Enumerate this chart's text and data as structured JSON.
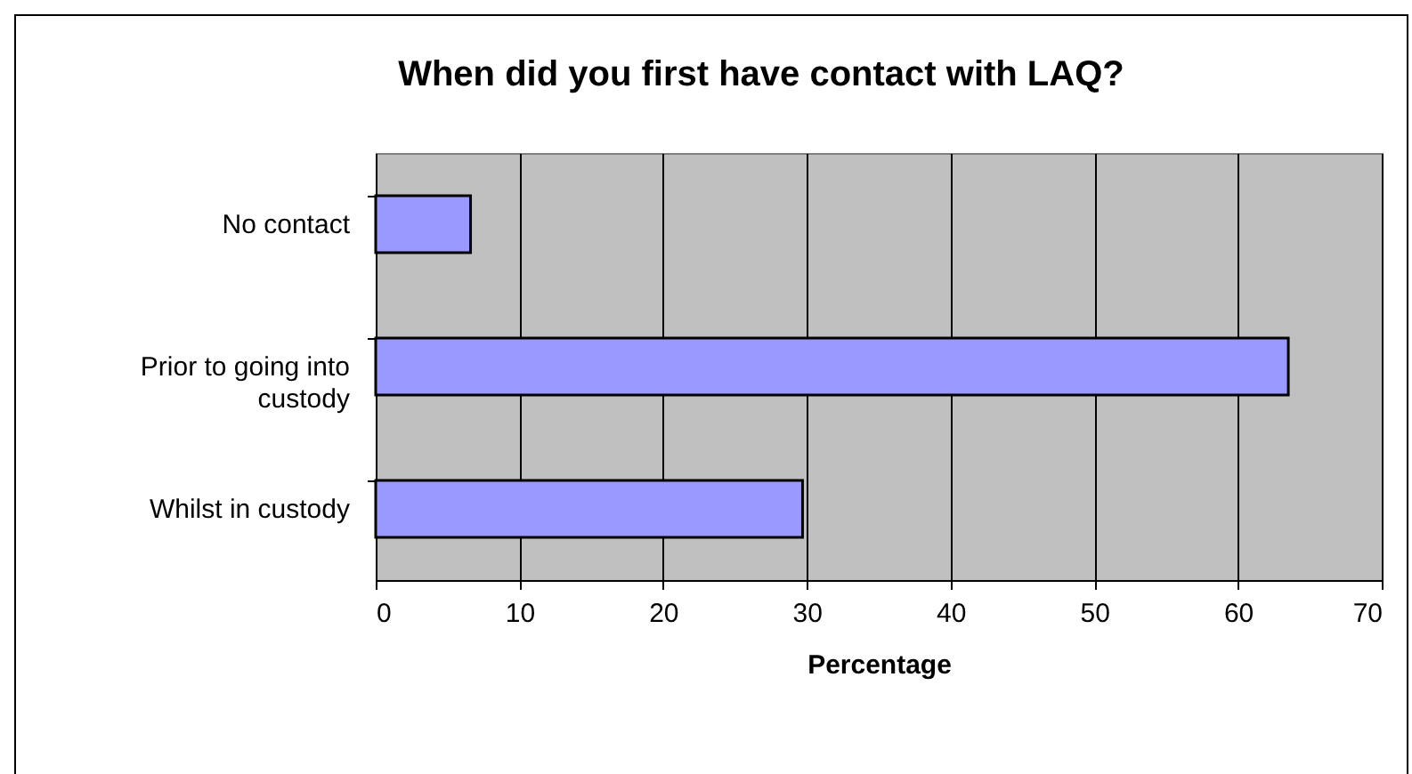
{
  "chart_data": {
    "type": "bar",
    "orientation": "horizontal",
    "title": "When did you first have contact with LAQ?",
    "xlabel": "Percentage",
    "categories": [
      "No contact",
      "Prior to going into custody",
      "Whilst in custody"
    ],
    "values": [
      6.6,
      63.5,
      29.7
    ],
    "color": "#9999ff",
    "xlim": [
      0,
      70
    ],
    "xticks": [
      0,
      10,
      20,
      30,
      40,
      50,
      60,
      70
    ],
    "grid": "x"
  }
}
